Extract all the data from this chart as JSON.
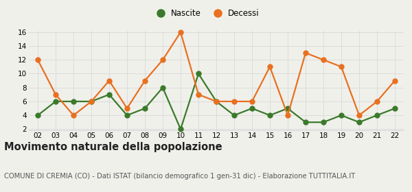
{
  "years": [
    "02",
    "03",
    "04",
    "05",
    "06",
    "07",
    "08",
    "09",
    "10",
    "11",
    "12",
    "13",
    "14",
    "15",
    "16",
    "17",
    "18",
    "19",
    "20",
    "21",
    "22"
  ],
  "nascite": [
    4,
    6,
    6,
    6,
    7,
    4,
    5,
    8,
    2,
    10,
    6,
    4,
    5,
    4,
    5,
    3,
    3,
    4,
    3,
    4,
    5
  ],
  "decessi": [
    12,
    7,
    4,
    6,
    9,
    5,
    9,
    12,
    16,
    7,
    6,
    6,
    6,
    11,
    4,
    13,
    12,
    11,
    4,
    6,
    9
  ],
  "nascite_color": "#3a7a2a",
  "decessi_color": "#e87020",
  "bg_color": "#f0f0eb",
  "grid_color": "#d8d8d8",
  "ylim_min": 2,
  "ylim_max": 16,
  "yticks": [
    2,
    4,
    6,
    8,
    10,
    12,
    14,
    16
  ],
  "legend_nascite": "Nascite",
  "legend_decessi": "Decessi",
  "title": "Movimento naturale della popolazione",
  "subtitle": "COMUNE DI CREMIA (CO) - Dati ISTAT (bilancio demografico 1 gen-31 dic) - Elaborazione TUTTITALIA.IT",
  "title_fontsize": 10.5,
  "subtitle_fontsize": 7.2,
  "marker_size": 5,
  "line_width": 1.6,
  "tick_fontsize": 7.5,
  "legend_fontsize": 8.5
}
